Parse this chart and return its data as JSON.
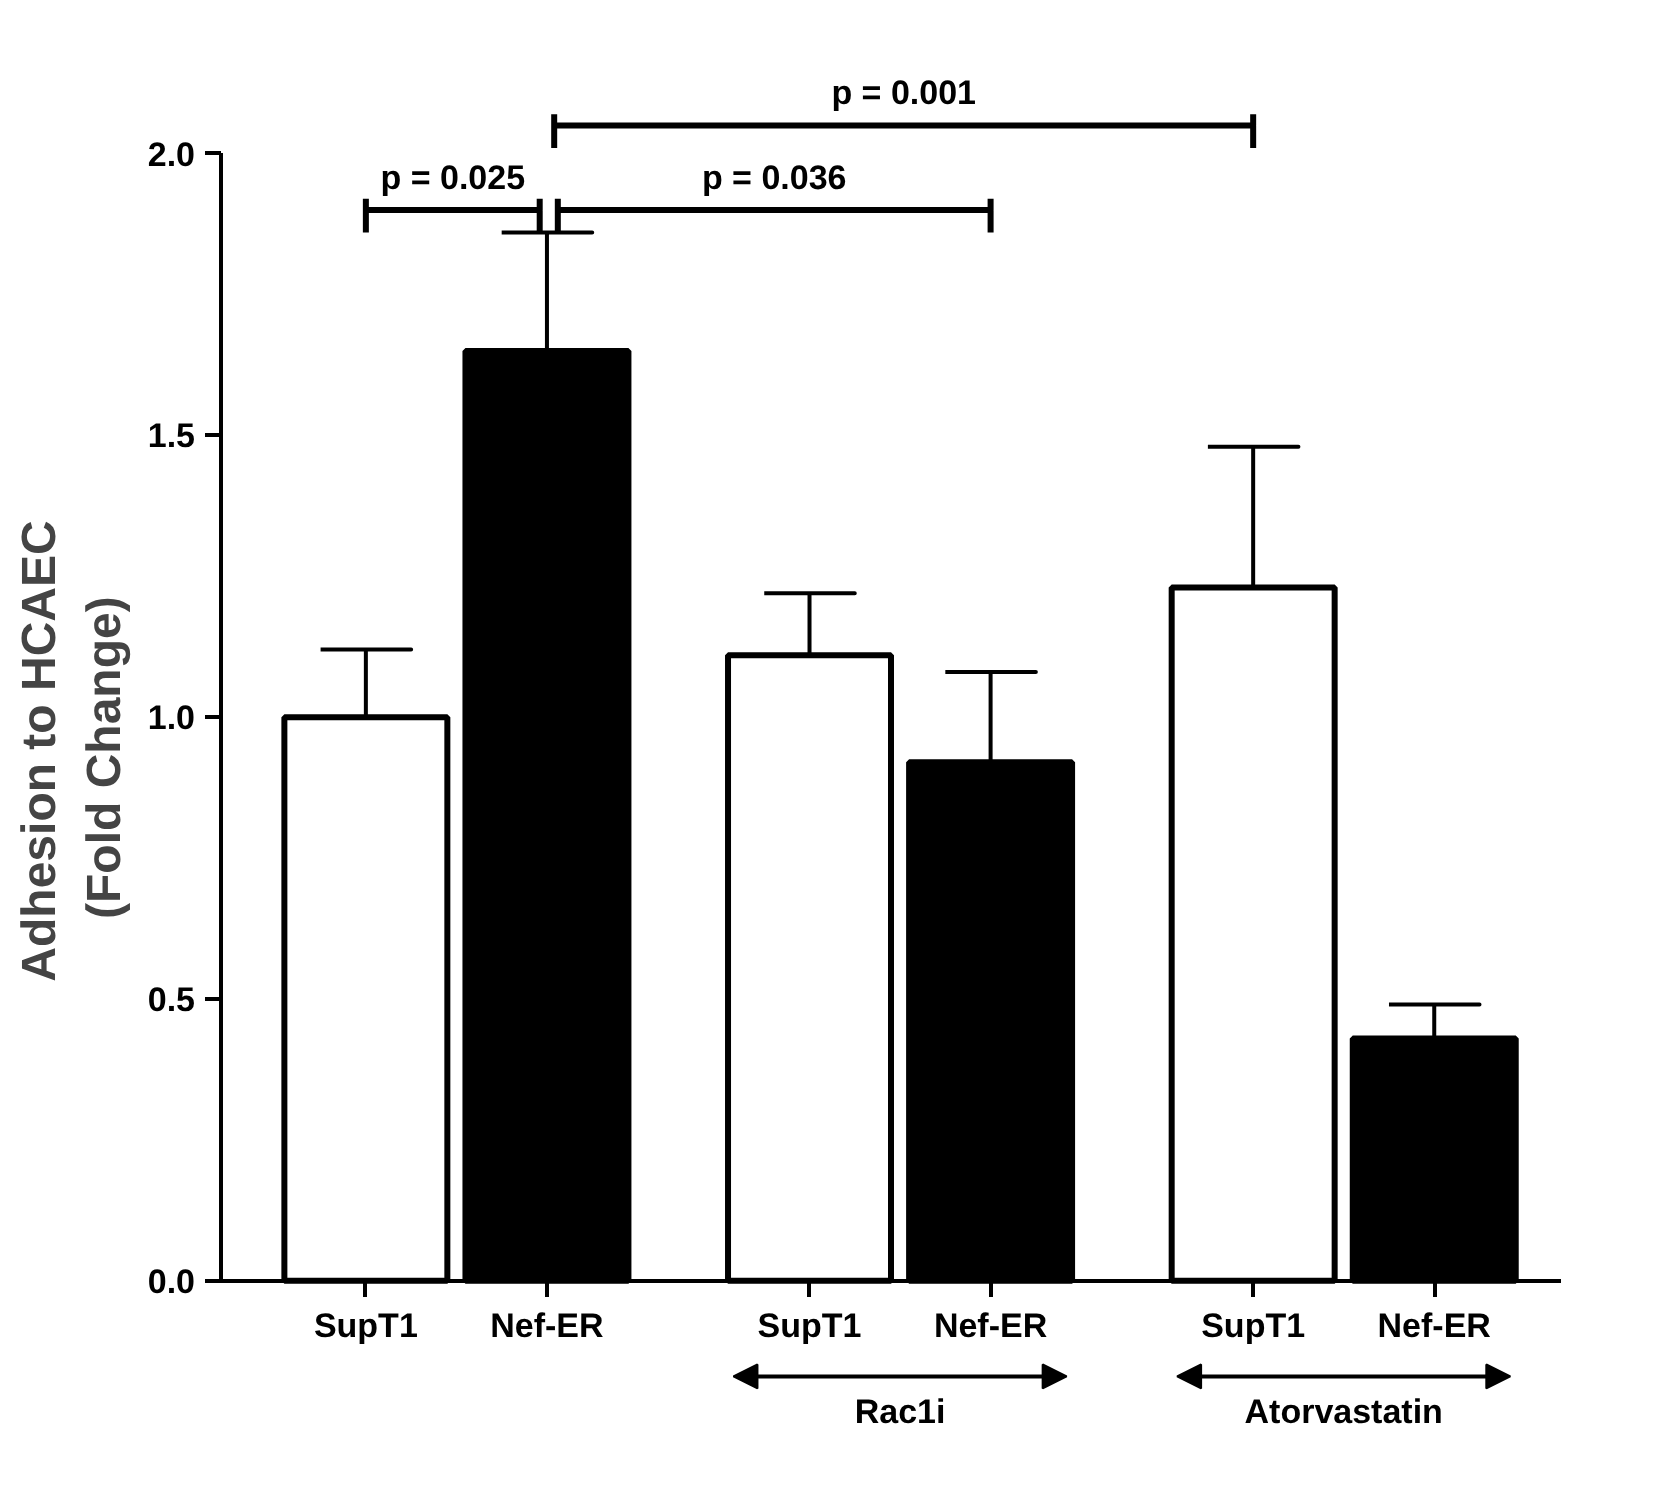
{
  "chart_data": {
    "type": "bar",
    "ylabel": "Adhesion to HCAEC\n(Fold  Change)",
    "categories": [
      "SupT1",
      "Nef-ER",
      "SupT1",
      "Nef-ER",
      "SupT1",
      "Nef-ER"
    ],
    "values": [
      1.0,
      1.65,
      1.11,
      0.92,
      1.23,
      0.43
    ],
    "errors": [
      [
        1.0,
        1.12
      ],
      [
        1.65,
        1.86
      ],
      [
        1.11,
        1.22
      ],
      [
        0.92,
        1.08
      ],
      [
        1.23,
        1.48
      ],
      [
        0.43,
        0.49
      ]
    ],
    "colors": [
      "#ffffff",
      "#000000",
      "#ffffff",
      "#000000",
      "#ffffff",
      "#000000"
    ],
    "ylim": [
      0,
      2
    ],
    "yticks": [
      {
        "value": 0,
        "label": "0.0"
      },
      {
        "value": 0.5,
        "label": "0.5"
      },
      {
        "value": 1,
        "label": "1.0"
      },
      {
        "value": 1.5,
        "label": "1.5"
      },
      {
        "value": 2,
        "label": "2.0"
      }
    ],
    "grid": false,
    "annotations": [
      "p = 0.025",
      "p = 0.036",
      "p = 0.001",
      "Rac1i",
      "Atorvastatin"
    ]
  }
}
